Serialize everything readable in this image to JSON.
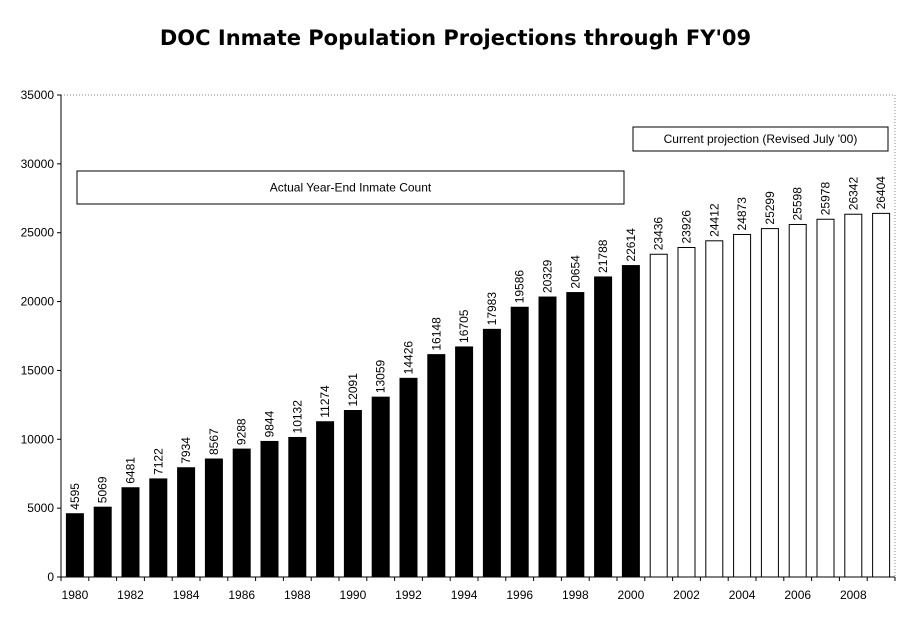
{
  "chart_data": {
    "type": "bar",
    "title": "DOC Inmate Population Projections through FY'09",
    "xlabel": "",
    "ylabel": "",
    "ylim": [
      0,
      35000
    ],
    "yticks": [
      0,
      5000,
      10000,
      15000,
      20000,
      25000,
      30000,
      35000
    ],
    "grid": false,
    "categories": [
      "1980",
      "1981",
      "1982",
      "1983",
      "1984",
      "1985",
      "1986",
      "1987",
      "1988",
      "1989",
      "1990",
      "1991",
      "1992",
      "1993",
      "1994",
      "1995",
      "1996",
      "1997",
      "1998",
      "1999",
      "2000",
      "2001",
      "2002",
      "2003",
      "2004",
      "2005",
      "2006",
      "2007",
      "2008",
      "2009"
    ],
    "xtick_labels": [
      "1980",
      "1982",
      "1984",
      "1986",
      "1988",
      "1990",
      "1992",
      "1994",
      "1996",
      "1998",
      "2000",
      "2002",
      "2004",
      "2006",
      "2008"
    ],
    "values": [
      4595,
      5069,
      6481,
      7122,
      7934,
      8567,
      9288,
      9844,
      10132,
      11274,
      12091,
      13059,
      14426,
      16148,
      16705,
      17983,
      19586,
      20329,
      20654,
      21788,
      22614,
      23436,
      23926,
      24412,
      24873,
      25299,
      25598,
      25978,
      26342,
      26404
    ],
    "series_groups": [
      {
        "name": "Actual Year-End Inmate Count",
        "from": "1980",
        "to": "2000",
        "color": "#000000"
      },
      {
        "name": "Current projection (Revised July '00)",
        "from": "2001",
        "to": "2009",
        "color": "#ffffff"
      }
    ],
    "annotations": [
      {
        "text": "Actual Year-End Inmate Count"
      },
      {
        "text": "Current projection (Revised July '00)"
      }
    ]
  }
}
